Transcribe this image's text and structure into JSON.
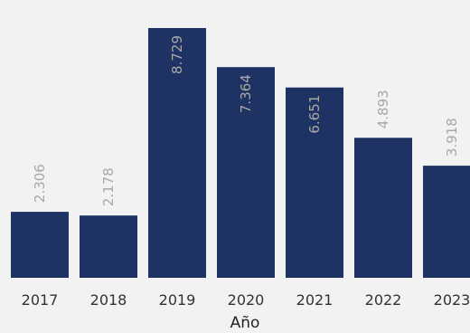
{
  "chart_data": {
    "type": "bar",
    "title": "",
    "xlabel": "Año",
    "ylabel": "",
    "categories": [
      "2017",
      "2018",
      "2019",
      "2020",
      "2021",
      "2022",
      "2023"
    ],
    "values": [
      2306,
      2178,
      8729,
      7364,
      6651,
      4893,
      3918
    ],
    "data_labels": [
      "2.306",
      "2.178",
      "8.729",
      "7.364",
      "6.651",
      "4.893",
      "3.918"
    ],
    "ylim": [
      0,
      8729
    ],
    "grid": false,
    "legend": "none",
    "colors": {
      "bar": "#1f3264",
      "data_label": "#a8a8a8",
      "background": "#f2f2f2"
    }
  }
}
